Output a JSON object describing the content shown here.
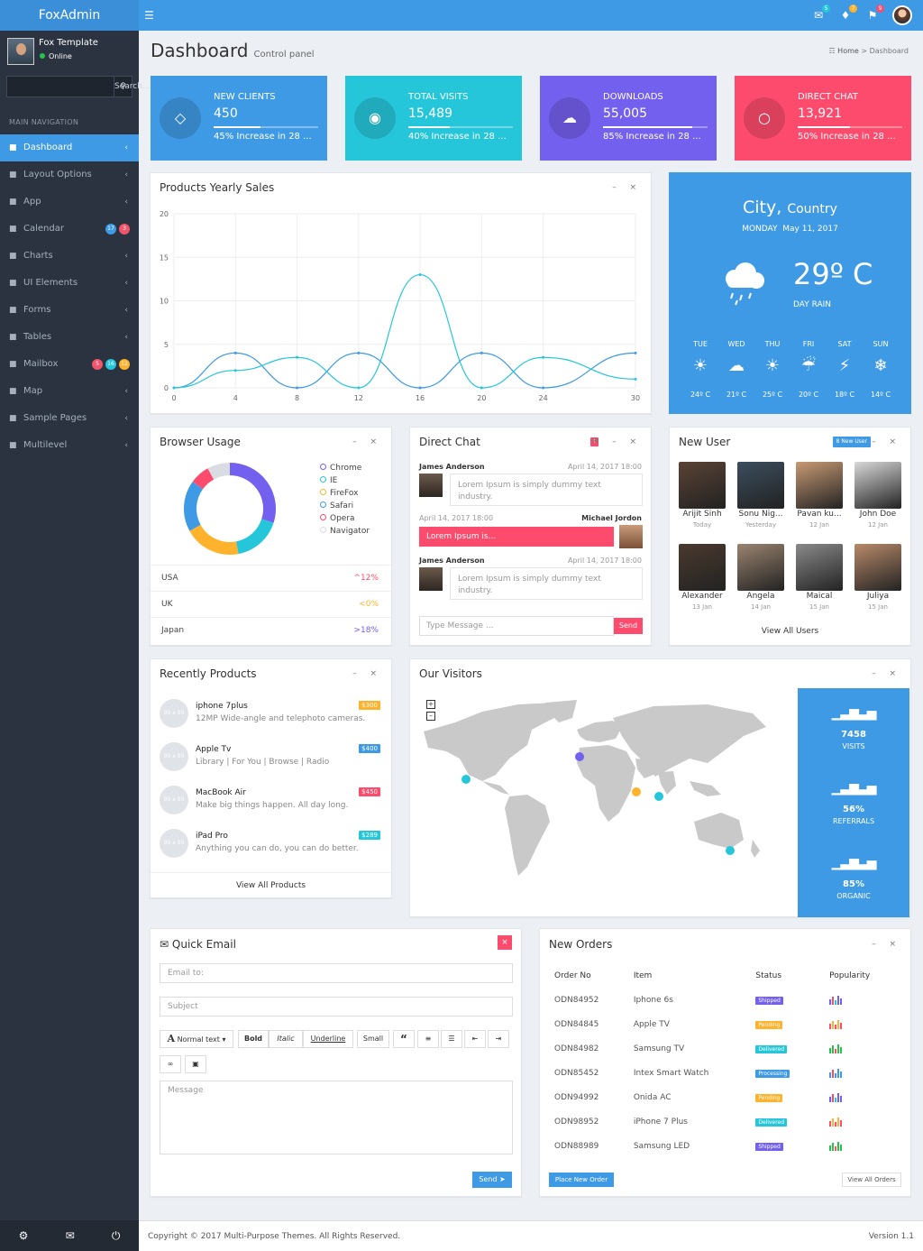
{
  "app": {
    "logo": "FoxAdmin"
  },
  "topbar": {
    "badges": [
      "5",
      "7",
      "9"
    ]
  },
  "user": {
    "name": "Fox Template",
    "status": "Online"
  },
  "sidebar": {
    "search_placeholder": "Search...",
    "header": "MAIN NAVIGATION",
    "items": [
      {
        "label": "Dashboard",
        "icon": "dashboard-icon",
        "active": true
      },
      {
        "label": "Layout Options",
        "icon": "layout-icon"
      },
      {
        "label": "App",
        "icon": "grid-icon"
      },
      {
        "label": "Calendar",
        "icon": "calendar-icon",
        "badges": [
          {
            "text": "17",
            "color": "#3f9ae5"
          },
          {
            "text": "3",
            "color": "#f1556c"
          }
        ]
      },
      {
        "label": "Charts",
        "icon": "pie-icon"
      },
      {
        "label": "UI Elements",
        "icon": "laptop-icon"
      },
      {
        "label": "Forms",
        "icon": "edit-icon"
      },
      {
        "label": "Tables",
        "icon": "table-icon"
      },
      {
        "label": "Mailbox",
        "icon": "envelope-icon",
        "badges": [
          {
            "text": "5",
            "color": "#f1556c"
          },
          {
            "text": "16",
            "color": "#26c6da"
          },
          {
            "text": "12",
            "color": "#ffb22b"
          }
        ]
      },
      {
        "label": "Map",
        "icon": "map-icon"
      },
      {
        "label": "Sample Pages",
        "icon": "folder-icon"
      },
      {
        "label": "Multilevel",
        "icon": "share-icon"
      }
    ]
  },
  "header": {
    "title": "Dashboard",
    "subtitle": "Control panel",
    "breadcrumb": [
      "Home",
      "Dashboard"
    ]
  },
  "stats": [
    {
      "title": "NEW CLIENTS",
      "value": "450",
      "desc": "45% Increase in 28 ...",
      "progress": 0.45,
      "color": "#3f9ae5",
      "icon": "tag-icon"
    },
    {
      "title": "TOTAL VISITS",
      "value": "15,489",
      "desc": "40% Increase in 28 ...",
      "progress": 0.4,
      "color": "#26c6da",
      "icon": "eye-icon"
    },
    {
      "title": "DOWNLOADS",
      "value": "55,005",
      "desc": "85% Increase in 28 ...",
      "progress": 0.85,
      "color": "#7460ee",
      "icon": "cloud-download-icon"
    },
    {
      "title": "DIRECT CHAT",
      "value": "13,921",
      "desc": "50% Increase in 28 ...",
      "progress": 0.5,
      "color": "#fc4b6c",
      "icon": "chat-icon"
    }
  ],
  "sales": {
    "title": "Products Yearly Sales"
  },
  "chart_data": {
    "type": "line",
    "title": "Products Yearly Sales",
    "x": [
      0,
      4,
      8,
      12,
      16,
      20,
      24,
      30
    ],
    "xticks": [
      "0",
      "4",
      "8",
      "12",
      "16",
      "20",
      "24",
      "30"
    ],
    "yticks": [
      "0",
      "5",
      "10",
      "15",
      "20"
    ],
    "ylim": [
      0,
      20
    ],
    "xlim": [
      0,
      30
    ],
    "grid": true,
    "series": [
      {
        "values": [
          0,
          4,
          0,
          4,
          0,
          4,
          0,
          4
        ],
        "color": "#3f9ae5"
      },
      {
        "values": [
          0,
          2,
          3.5,
          0,
          13,
          0,
          3.5,
          1
        ],
        "color": "#26c6da"
      }
    ]
  },
  "weather": {
    "city": "City,",
    "country": "Country",
    "day": "MONDAY",
    "date": "May 11, 2017",
    "temp": "29º C",
    "cond": "DAY RAIN",
    "days": [
      {
        "d": "TUE",
        "t": "24º C"
      },
      {
        "d": "WED",
        "t": "21º C"
      },
      {
        "d": "THU",
        "t": "25º C"
      },
      {
        "d": "FRI",
        "t": "20º C"
      },
      {
        "d": "SAT",
        "t": "18º C"
      },
      {
        "d": "SUN",
        "t": "14º C"
      }
    ]
  },
  "browser": {
    "title": "Browser Usage",
    "legend": [
      {
        "n": "Chrome",
        "c": "#7460ee"
      },
      {
        "n": "IE",
        "c": "#26c6da"
      },
      {
        "n": "FireFox",
        "c": "#ffb22b"
      },
      {
        "n": "Safari",
        "c": "#3f9ae5"
      },
      {
        "n": "Opera",
        "c": "#fc4b6c"
      },
      {
        "n": "Navigator",
        "c": "#d9dde3"
      }
    ],
    "rows": [
      {
        "c": "USA",
        "v": "12%",
        "col": "#fc4b6c",
        "arr": "^"
      },
      {
        "c": "UK",
        "v": "0%",
        "col": "#ffb22b",
        "arr": "<"
      },
      {
        "c": "Japan",
        "v": "18%",
        "col": "#7460ee",
        "arr": ">"
      }
    ]
  },
  "chat": {
    "title": "Direct Chat",
    "badge": "1",
    "m1": {
      "name": "James Anderson",
      "time": "April 14, 2017 18:00",
      "text": "Lorem Ipsum is simply dummy text industry."
    },
    "m2": {
      "name": "Michael Jordon",
      "time": "April 14, 2017 18:00",
      "text": "Lorem Ipsum is..."
    },
    "m3": {
      "name": "James Anderson",
      "time": "April 14, 2017 18:00",
      "text": "Lorem Ipsum is simply dummy text industry."
    },
    "placeholder": "Type Message ...",
    "send": "Send"
  },
  "newuser": {
    "title": "New User",
    "badge": "8 New User",
    "view": "View All Users",
    "users": [
      {
        "n": "Arijit Sinh",
        "d": "Today"
      },
      {
        "n": "Sonu Nig...",
        "d": "Yesterday"
      },
      {
        "n": "Pavan ku...",
        "d": "12 Jan"
      },
      {
        "n": "John Doe",
        "d": "12 Jan"
      },
      {
        "n": "Alexander",
        "d": "13 Jan"
      },
      {
        "n": "Angela",
        "d": "14 Jan"
      },
      {
        "n": "Maical",
        "d": "15 Jan"
      },
      {
        "n": "Juliya",
        "d": "15 Jan"
      }
    ]
  },
  "products": {
    "title": "Recently Products",
    "view": "View All Products",
    "thumb": "90 x 90",
    "items": [
      {
        "n": "iphone 7plus",
        "d": "12MP Wide-angle and telephoto cameras.",
        "p": "$300",
        "c": "#ffb22b"
      },
      {
        "n": "Apple Tv",
        "d": "Library | For You | Browse | Radio",
        "p": "$400",
        "c": "#3f9ae5"
      },
      {
        "n": "MacBook Air",
        "d": "Make big things happen. All day long.",
        "p": "$450",
        "c": "#fc4b6c"
      },
      {
        "n": "iPad Pro",
        "d": "Anything you can do, you can do better.",
        "p": "$289",
        "c": "#26c6da"
      }
    ]
  },
  "visitors": {
    "title": "Our Visitors",
    "stats": [
      {
        "v": "7458",
        "l": "VISITS"
      },
      {
        "v": "56%",
        "l": "REFERRALS"
      },
      {
        "v": "85%",
        "l": "ORGANIC"
      }
    ]
  },
  "email": {
    "title": "Quick Email",
    "to": "Email to:",
    "subject": "Subject",
    "message": "Message",
    "send": "Send",
    "toolbar": {
      "normal": "Normal text",
      "bold": "Bold",
      "italic": "Italic",
      "underline": "Underline",
      "small": "Small"
    }
  },
  "orders": {
    "title": "New Orders",
    "cols": [
      "Order No",
      "Item",
      "Status",
      "Popularity"
    ],
    "btn1": "Place New Order",
    "btn2": "View All Orders",
    "rows": [
      {
        "o": "ODN84952",
        "i": "Iphone 6s",
        "s": "Shipped",
        "c": "#7460ee"
      },
      {
        "o": "ODN84845",
        "i": "Apple TV",
        "s": "Pending",
        "c": "#ffb22b"
      },
      {
        "o": "ODN84982",
        "i": "Samsung TV",
        "s": "Delivered",
        "c": "#26c6da"
      },
      {
        "o": "ODN85452",
        "i": "Intex Smart Watch",
        "s": "Processing",
        "c": "#3f9ae5"
      },
      {
        "o": "ODN94992",
        "i": "Onida AC",
        "s": "Pending",
        "c": "#ffb22b"
      },
      {
        "o": "ODN98952",
        "i": "iPhone 7 Plus",
        "s": "Delivered",
        "c": "#26c6da"
      },
      {
        "o": "ODN88989",
        "i": "Samsung LED",
        "s": "Shipped",
        "c": "#7460ee"
      }
    ]
  },
  "footer": {
    "copy": "Copyright © 2017 Multi-Purpose Themes. All Rights Reserved.",
    "version": "Version 1.1"
  }
}
